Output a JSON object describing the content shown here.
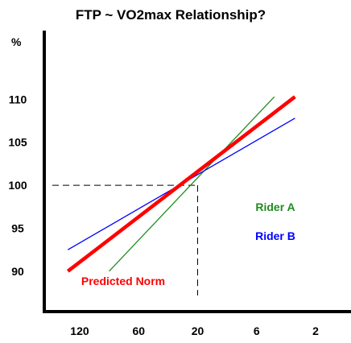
{
  "colors": {
    "background": "#ffffff",
    "axis": "#000000",
    "predicted_norm": "#ff0000",
    "rider_a": "#228b22",
    "rider_b": "#0000ff",
    "reference_dash": "#000000"
  },
  "chart_data": {
    "type": "line",
    "title": "FTP ~ VO2max Relationship?",
    "xlabel": "",
    "ylabel": "%",
    "x_tick_labels": [
      "120",
      "60",
      "20",
      "6",
      "2"
    ],
    "x_tick_values": [
      0,
      1,
      2,
      3,
      4
    ],
    "y_ticks": [
      90,
      95,
      100,
      105,
      110
    ],
    "xlim": [
      -0.6,
      4.6
    ],
    "ylim": [
      85.3,
      118
    ],
    "grid": false,
    "legend": "none",
    "reference_point": {
      "x": 2,
      "y": 100,
      "dashed_guides": true
    },
    "series": [
      {
        "name": "Predicted Norm",
        "color_key": "predicted_norm",
        "width": "thick",
        "points": [
          [
            -0.2,
            90
          ],
          [
            3.65,
            110.3
          ]
        ]
      },
      {
        "name": "Rider A",
        "color_key": "rider_a",
        "width": "thin",
        "points": [
          [
            0.5,
            90
          ],
          [
            3.3,
            110.3
          ]
        ]
      },
      {
        "name": "Rider B",
        "color_key": "rider_b",
        "width": "thin",
        "points": [
          [
            -0.2,
            92.5
          ],
          [
            3.65,
            107.8
          ]
        ]
      }
    ],
    "annotations": [
      {
        "text": "Rider A",
        "series": "Rider A"
      },
      {
        "text": "Rider B",
        "series": "Rider B"
      },
      {
        "text": "Predicted Norm",
        "series": "Predicted Norm"
      }
    ]
  }
}
